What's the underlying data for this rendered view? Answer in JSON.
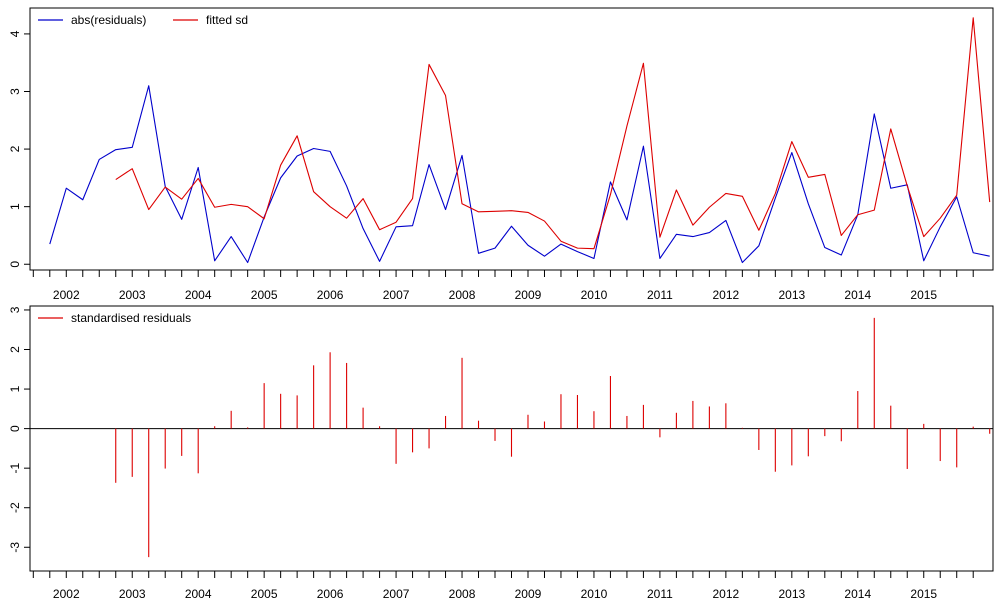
{
  "chart_data": [
    {
      "type": "line",
      "ylim": [
        -0.1,
        4.45
      ],
      "yticks": [
        0,
        1,
        2,
        3,
        4
      ],
      "xlim": [
        2001.45,
        2016.05
      ],
      "xticks": [
        2002,
        2003,
        2004,
        2005,
        2006,
        2007,
        2008,
        2009,
        2010,
        2011,
        2012,
        2013,
        2014,
        2015
      ],
      "x_start": 2001.75,
      "x_step": 0.25,
      "legend_position": "top-left",
      "series": [
        {
          "name": "abs(residuals)",
          "color": "#0000cc",
          "values": [
            0.35,
            1.32,
            1.12,
            1.82,
            1.99,
            2.03,
            3.1,
            1.35,
            0.78,
            1.68,
            0.06,
            0.48,
            0.03,
            0.82,
            1.5,
            1.88,
            2.01,
            1.96,
            1.36,
            0.62,
            0.05,
            0.65,
            0.67,
            1.73,
            0.95,
            1.89,
            0.19,
            0.28,
            0.66,
            0.33,
            0.14,
            0.35,
            0.22,
            0.1,
            1.43,
            0.77,
            2.05,
            0.1,
            0.52,
            0.48,
            0.55,
            0.76,
            0.03,
            0.32,
            1.15,
            1.94,
            1.05,
            0.29,
            0.16,
            0.86,
            2.61,
            1.32,
            1.38,
            0.06,
            0.65,
            1.17,
            0.2,
            0.14
          ]
        },
        {
          "name": "fitted sd",
          "color": "#dd0000",
          "values": [
            null,
            null,
            null,
            null,
            1.47,
            1.66,
            0.95,
            1.34,
            1.13,
            1.49,
            0.99,
            1.04,
            1.0,
            0.79,
            1.72,
            2.23,
            1.26,
            1.0,
            0.8,
            1.14,
            0.6,
            0.73,
            1.14,
            3.47,
            2.93,
            1.05,
            0.91,
            0.92,
            0.93,
            0.9,
            0.75,
            0.4,
            0.28,
            0.27,
            1.21,
            2.4,
            3.49,
            0.47,
            1.29,
            0.68,
            0.99,
            1.23,
            1.18,
            0.59,
            1.23,
            2.13,
            1.51,
            1.56,
            0.5,
            0.86,
            0.94,
            2.35,
            1.36,
            0.48,
            0.8,
            1.2,
            4.28,
            1.08
          ]
        }
      ]
    },
    {
      "type": "bar",
      "ylim": [
        -3.6,
        3.1
      ],
      "yticks": [
        -3,
        -2,
        -1,
        0,
        1,
        2,
        3
      ],
      "xlim": [
        2001.45,
        2016.05
      ],
      "xticks": [
        2002,
        2003,
        2004,
        2005,
        2006,
        2007,
        2008,
        2009,
        2010,
        2011,
        2012,
        2013,
        2014,
        2015
      ],
      "x_start": 2001.75,
      "x_step": 0.25,
      "legend_position": "top-left",
      "series": [
        {
          "name": "standardised residuals",
          "color": "#dd0000",
          "values": [
            null,
            null,
            null,
            null,
            -1.37,
            -1.22,
            -3.25,
            -1.01,
            -0.69,
            -1.13,
            0.06,
            0.45,
            0.03,
            1.15,
            0.88,
            0.84,
            1.6,
            1.93,
            1.66,
            0.53,
            0.06,
            -0.89,
            -0.6,
            -0.5,
            0.32,
            1.79,
            0.2,
            -0.31,
            -0.71,
            0.35,
            0.18,
            0.87,
            0.85,
            0.44,
            1.33,
            0.32,
            0.6,
            -0.22,
            0.4,
            0.7,
            0.56,
            0.64,
            0.02,
            -0.54,
            -1.09,
            -0.93,
            -0.7,
            -0.19,
            -0.32,
            0.95,
            2.8,
            0.58,
            -1.02,
            0.12,
            -0.82,
            -0.98,
            0.05,
            -0.13
          ]
        }
      ]
    }
  ]
}
